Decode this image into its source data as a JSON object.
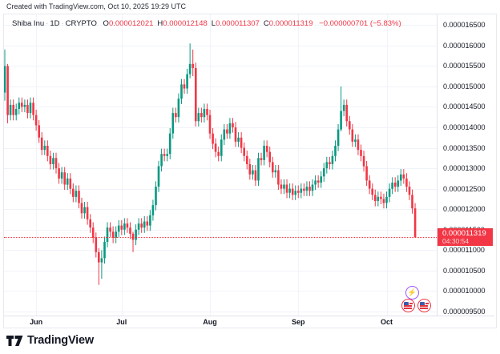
{
  "attribution": "Created with TradingView.com, Oct 10, 2025 19:29 UTC",
  "legend": {
    "symbol": "Shiba Inu",
    "interval": "1D",
    "exchange": "CRYPTO",
    "separator": "·",
    "ohlc": [
      {
        "key": "O",
        "value": "0.000012021"
      },
      {
        "key": "H",
        "value": "0.000012148"
      },
      {
        "key": "L",
        "value": "0.000011307"
      },
      {
        "key": "C",
        "value": "0.000011319"
      }
    ],
    "change": "−0.000000701 (−5.83%)"
  },
  "price_axis": {
    "ticks": [
      {
        "label": "0.000016500",
        "value": 16.5
      },
      {
        "label": "0.000016000",
        "value": 16.0
      },
      {
        "label": "0.000015500",
        "value": 15.5
      },
      {
        "label": "0.000015000",
        "value": 15.0
      },
      {
        "label": "0.000014500",
        "value": 14.5
      },
      {
        "label": "0.000014000",
        "value": 14.0
      },
      {
        "label": "0.000013500",
        "value": 13.5
      },
      {
        "label": "0.000013000",
        "value": 13.0
      },
      {
        "label": "0.000012500",
        "value": 12.5
      },
      {
        "label": "0.000012000",
        "value": 12.0
      },
      {
        "label": "0.000011500",
        "value": 11.5
      },
      {
        "label": "0.000011000",
        "value": 11.0
      },
      {
        "label": "0.000010500",
        "value": 10.5
      },
      {
        "label": "0.000010000",
        "value": 10.0
      },
      {
        "label": "0.000009500",
        "value": 9.5
      }
    ]
  },
  "time_axis": {
    "months": [
      {
        "label": "Jun",
        "day": 11
      },
      {
        "label": "Jul",
        "day": 41
      },
      {
        "label": "Aug",
        "day": 72
      },
      {
        "label": "Sep",
        "day": 103
      },
      {
        "label": "Oct",
        "day": 134
      }
    ]
  },
  "current_price": {
    "label": "0.000011319",
    "countdown": "04:30:54",
    "value": 11.319
  },
  "chart_data": {
    "type": "candlestick",
    "title": "Shiba Inu · 1D · CRYPTO",
    "unit": "price × 10⁻⁶ USD",
    "ylim": [
      9.4,
      16.76
    ],
    "x_spacing": 3.556,
    "x_start": 1,
    "first_open": 14.85,
    "default_wick": 0.13,
    "closes": [
      15.5,
      14.3,
      14.55,
      14.3,
      14.45,
      14.6,
      14.5,
      14.55,
      14.35,
      14.6,
      14.3,
      14.05,
      13.75,
      13.45,
      13.55,
      13.3,
      13.1,
      13.25,
      13.0,
      12.75,
      12.9,
      12.6,
      12.75,
      12.5,
      12.3,
      12.45,
      12.15,
      11.9,
      12.05,
      11.75,
      11.55,
      11.3,
      10.95,
      10.7,
      10.8,
      11.2,
      11.55,
      11.45,
      11.3,
      11.45,
      11.6,
      11.5,
      11.65,
      11.55,
      11.4,
      11.25,
      11.5,
      11.65,
      11.55,
      11.7,
      11.6,
      11.85,
      12.1,
      12.55,
      13.05,
      13.35,
      13.3,
      13.35,
      13.85,
      14.35,
      14.25,
      14.7,
      15.05,
      14.95,
      15.3,
      15.55,
      15.45,
      14.15,
      14.35,
      14.25,
      14.45,
      14.3,
      13.85,
      13.6,
      13.4,
      13.3,
      13.7,
      13.95,
      13.85,
      14.1,
      14.0,
      13.65,
      13.75,
      13.5,
      13.3,
      13.1,
      12.85,
      12.95,
      12.7,
      13.25,
      13.2,
      13.55,
      13.4,
      13.15,
      12.9,
      12.95,
      12.6,
      12.5,
      12.6,
      12.4,
      12.5,
      12.35,
      12.45,
      12.4,
      12.5,
      12.45,
      12.55,
      12.45,
      12.6,
      12.7,
      12.65,
      12.8,
      13.0,
      13.15,
      13.1,
      13.3,
      13.55,
      13.95,
      14.4,
      14.55,
      14.15,
      13.95,
      13.65,
      13.7,
      13.45,
      13.3,
      13.05,
      12.7,
      12.5,
      12.35,
      12.2,
      12.3,
      12.25,
      12.15,
      12.3,
      12.5,
      12.65,
      12.55,
      12.7,
      12.85,
      12.75,
      12.55,
      12.35,
      12.02,
      11.319
    ],
    "wick_overrides": {
      "0": [
        15.9,
        14.65
      ],
      "1": [
        15.55,
        14.1
      ],
      "33": [
        11.05,
        10.15
      ],
      "34": [
        11.0,
        10.3
      ],
      "45": [
        11.45,
        10.95
      ],
      "65": [
        16.05,
        15.2
      ],
      "66": [
        15.9,
        15.25
      ],
      "118": [
        15.0,
        13.9
      ],
      "144": [
        12.148,
        11.307
      ]
    },
    "last_candle": {
      "open": "0.000012021",
      "high": "0.000012148",
      "low": "0.000011307",
      "close": "0.000011319",
      "change": "−0.000000701",
      "change_pct": "−5.83%"
    }
  },
  "colors": {
    "up": "#089981",
    "down": "#f23645",
    "text": "#131722",
    "grid": "#f0f3fa",
    "axis_border": "#e0e3eb",
    "price_flag_bg": "#f23645",
    "event_purple": "#a855f7"
  },
  "markers": {
    "lightning_glyph": "⚡"
  },
  "logo": {
    "text": "TradingView"
  }
}
